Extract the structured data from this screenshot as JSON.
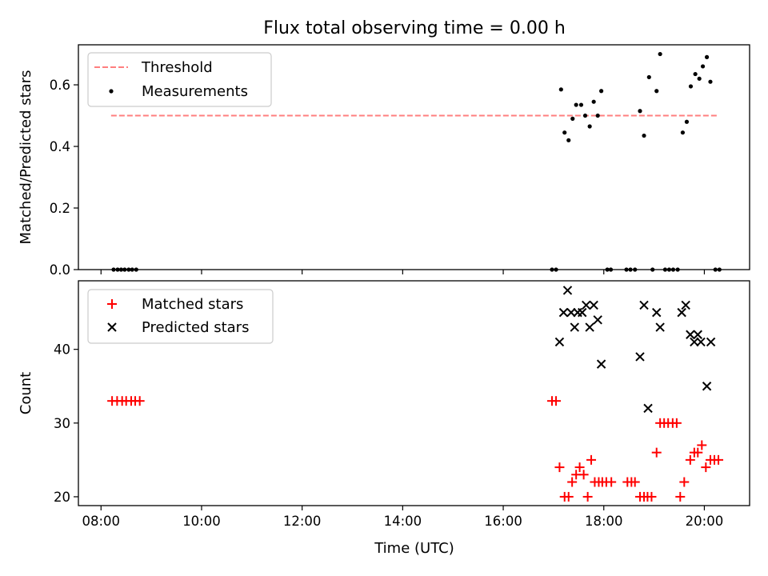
{
  "chart_data": [
    {
      "type": "scatter",
      "title": "Flux total observing time = 0.00 h",
      "xlabel": "",
      "ylabel": "Matched/Predicted stars",
      "xlim": [
        7.55,
        20.9
      ],
      "ylim": [
        0,
        0.73
      ],
      "yticks": [
        0.0,
        0.2,
        0.4,
        0.6
      ],
      "ytick_labels": [
        "0.0",
        "0.2",
        "0.4",
        "0.6"
      ],
      "legend": "upper-left",
      "threshold": {
        "name": "Threshold",
        "y": 0.5,
        "x": [
          8.2,
          20.25
        ],
        "color": "#ff7f7f",
        "style": "dashed"
      },
      "series": [
        {
          "name": "Measurements",
          "marker": "dot",
          "color": "#000000",
          "points": [
            [
              8.25,
              0.0
            ],
            [
              8.33,
              0.0
            ],
            [
              8.4,
              0.0
            ],
            [
              8.47,
              0.0
            ],
            [
              8.55,
              0.0
            ],
            [
              8.62,
              0.0
            ],
            [
              8.7,
              0.0
            ],
            [
              16.97,
              0.0
            ],
            [
              17.05,
              0.0
            ],
            [
              17.15,
              0.585
            ],
            [
              17.22,
              0.445
            ],
            [
              17.3,
              0.42
            ],
            [
              17.38,
              0.49
            ],
            [
              17.45,
              0.535
            ],
            [
              17.55,
              0.535
            ],
            [
              17.63,
              0.5
            ],
            [
              17.72,
              0.465
            ],
            [
              17.8,
              0.545
            ],
            [
              17.88,
              0.5
            ],
            [
              17.95,
              0.58
            ],
            [
              18.07,
              0.0
            ],
            [
              18.14,
              0.0
            ],
            [
              18.45,
              0.0
            ],
            [
              18.53,
              0.0
            ],
            [
              18.62,
              0.0
            ],
            [
              18.72,
              0.515
            ],
            [
              18.8,
              0.435
            ],
            [
              18.9,
              0.625
            ],
            [
              18.97,
              0.0
            ],
            [
              19.05,
              0.58
            ],
            [
              19.12,
              0.7
            ],
            [
              19.22,
              0.0
            ],
            [
              19.3,
              0.0
            ],
            [
              19.38,
              0.0
            ],
            [
              19.47,
              0.0
            ],
            [
              19.57,
              0.445
            ],
            [
              19.65,
              0.48
            ],
            [
              19.73,
              0.595
            ],
            [
              19.82,
              0.635
            ],
            [
              19.9,
              0.62
            ],
            [
              19.97,
              0.66
            ],
            [
              20.05,
              0.69
            ],
            [
              20.12,
              0.61
            ],
            [
              20.22,
              0.0
            ],
            [
              20.3,
              0.0
            ]
          ]
        }
      ]
    },
    {
      "type": "scatter",
      "title": "",
      "xlabel": "Time (UTC)",
      "ylabel": "Count",
      "xlim": [
        7.55,
        20.9
      ],
      "ylim": [
        18.8,
        49.3
      ],
      "xticks": [
        8,
        10,
        12,
        14,
        16,
        18,
        20
      ],
      "xtick_labels": [
        "08:00",
        "10:00",
        "12:00",
        "14:00",
        "16:00",
        "18:00",
        "20:00"
      ],
      "yticks": [
        20,
        30,
        40
      ],
      "ytick_labels": [
        "20",
        "30",
        "40"
      ],
      "legend": "upper-left",
      "series": [
        {
          "name": "Matched stars",
          "marker": "plus",
          "color": "#ff0000",
          "points": [
            [
              8.22,
              33
            ],
            [
              8.32,
              33
            ],
            [
              8.42,
              33
            ],
            [
              8.5,
              33
            ],
            [
              8.6,
              33
            ],
            [
              8.68,
              33
            ],
            [
              8.77,
              33
            ],
            [
              16.97,
              33
            ],
            [
              17.05,
              33
            ],
            [
              17.12,
              24
            ],
            [
              17.22,
              20
            ],
            [
              17.3,
              20
            ],
            [
              17.37,
              22
            ],
            [
              17.45,
              23
            ],
            [
              17.52,
              24
            ],
            [
              17.6,
              23
            ],
            [
              17.68,
              20
            ],
            [
              17.75,
              25
            ],
            [
              17.82,
              22
            ],
            [
              17.9,
              22
            ],
            [
              17.97,
              22
            ],
            [
              18.05,
              22
            ],
            [
              18.15,
              22
            ],
            [
              18.47,
              22
            ],
            [
              18.55,
              22
            ],
            [
              18.62,
              22
            ],
            [
              18.72,
              20
            ],
            [
              18.8,
              20
            ],
            [
              18.87,
              20
            ],
            [
              18.95,
              20
            ],
            [
              19.05,
              26
            ],
            [
              19.12,
              30
            ],
            [
              19.2,
              30
            ],
            [
              19.28,
              30
            ],
            [
              19.37,
              30
            ],
            [
              19.45,
              30
            ],
            [
              19.52,
              20
            ],
            [
              19.6,
              22
            ],
            [
              19.72,
              25
            ],
            [
              19.8,
              26
            ],
            [
              19.87,
              26
            ],
            [
              19.95,
              27
            ],
            [
              20.03,
              24
            ],
            [
              20.12,
              25
            ],
            [
              20.2,
              25
            ],
            [
              20.28,
              25
            ]
          ]
        },
        {
          "name": "Predicted stars",
          "marker": "x",
          "color": "#000000",
          "points": [
            [
              17.12,
              41
            ],
            [
              17.2,
              45
            ],
            [
              17.28,
              48
            ],
            [
              17.35,
              45
            ],
            [
              17.42,
              43
            ],
            [
              17.48,
              45
            ],
            [
              17.57,
              45
            ],
            [
              17.65,
              46
            ],
            [
              17.72,
              43
            ],
            [
              17.8,
              46
            ],
            [
              17.88,
              44
            ],
            [
              17.95,
              38
            ],
            [
              18.72,
              39
            ],
            [
              18.8,
              46
            ],
            [
              18.88,
              32
            ],
            [
              19.05,
              45
            ],
            [
              19.12,
              43
            ],
            [
              19.55,
              45
            ],
            [
              19.63,
              46
            ],
            [
              19.72,
              42
            ],
            [
              19.8,
              41
            ],
            [
              19.87,
              42
            ],
            [
              19.93,
              41
            ],
            [
              20.05,
              35
            ],
            [
              20.13,
              41
            ]
          ]
        }
      ]
    }
  ]
}
